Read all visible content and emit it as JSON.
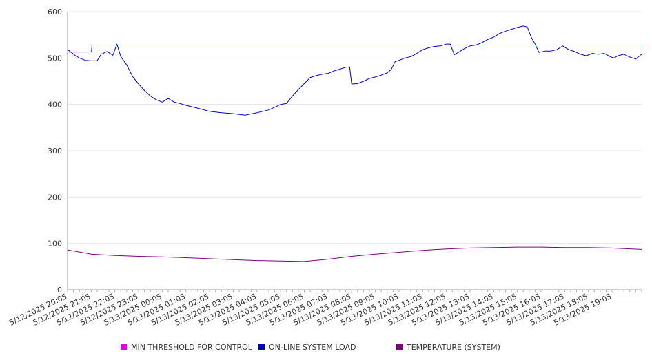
{
  "chart_data": {
    "type": "line",
    "title": "",
    "xlabel": "",
    "ylabel": "",
    "ylim": [
      0,
      600
    ],
    "yticks": [
      0,
      100,
      200,
      300,
      400,
      500,
      600
    ],
    "grid": true,
    "legend_position": "bottom",
    "x_tick_labels": [
      "5/12/2025 20:05",
      "5/12/2025 21:05",
      "5/12/2025 22:05",
      "5/12/2025 23:05",
      "5/13/2025 00:05",
      "5/13/2025 01:05",
      "5/13/2025 02:05",
      "5/13/2025 03:05",
      "5/13/2025 04:05",
      "5/13/2025 05:05",
      "5/13/2025 06:05",
      "5/13/2025 07:05",
      "5/13/2025 08:05",
      "5/13/2025 09:05",
      "5/13/2025 10:05",
      "5/13/2025 11:05",
      "5/13/2025 12:05",
      "5/13/2025 13:05",
      "5/13/2025 14:05",
      "5/13/2025 15:05",
      "5/13/2025 16:05",
      "5/13/2025 17:05",
      "5/13/2025 18:05",
      "5/13/2025 19:05"
    ],
    "x_range": [
      "5/12/2025 20:05",
      "5/13/2025 20:20"
    ],
    "series": [
      {
        "name": "MIN THRESHOLD FOR CONTROL",
        "color": "#e100e1",
        "points": [
          [
            "5/12/2025 20:05",
            513
          ],
          [
            "5/12/2025 21:05",
            513
          ],
          [
            "5/12/2025 21:07",
            528
          ],
          [
            "5/13/2025 20:20",
            528
          ]
        ]
      },
      {
        "name": "ON-LINE SYSTEM LOAD",
        "color": "#0000cc",
        "points": [
          [
            "5/12/2025 20:05",
            518
          ],
          [
            "5/12/2025 20:15",
            512
          ],
          [
            "5/12/2025 20:25",
            505
          ],
          [
            "5/12/2025 20:35",
            500
          ],
          [
            "5/12/2025 20:50",
            495
          ],
          [
            "5/12/2025 21:05",
            494
          ],
          [
            "5/12/2025 21:20",
            494
          ],
          [
            "5/12/2025 21:30",
            508
          ],
          [
            "5/12/2025 21:45",
            514
          ],
          [
            "5/12/2025 22:00",
            506
          ],
          [
            "5/12/2025 22:10",
            530
          ],
          [
            "5/12/2025 22:20",
            503
          ],
          [
            "5/12/2025 22:35",
            485
          ],
          [
            "5/12/2025 22:50",
            460
          ],
          [
            "5/12/2025 23:05",
            444
          ],
          [
            "5/12/2025 23:20",
            430
          ],
          [
            "5/12/2025 23:35",
            418
          ],
          [
            "5/12/2025 23:50",
            410
          ],
          [
            "5/13/2025 00:05",
            405
          ],
          [
            "5/13/2025 00:20",
            413
          ],
          [
            "5/13/2025 00:35",
            405
          ],
          [
            "5/13/2025 00:50",
            402
          ],
          [
            "5/13/2025 01:05",
            398
          ],
          [
            "5/13/2025 01:35",
            392
          ],
          [
            "5/13/2025 02:05",
            385
          ],
          [
            "5/13/2025 02:35",
            382
          ],
          [
            "5/13/2025 03:05",
            380
          ],
          [
            "5/13/2025 03:35",
            377
          ],
          [
            "5/13/2025 04:05",
            382
          ],
          [
            "5/13/2025 04:35",
            388
          ],
          [
            "5/13/2025 05:05",
            400
          ],
          [
            "5/13/2025 05:20",
            402
          ],
          [
            "5/13/2025 05:35",
            418
          ],
          [
            "5/13/2025 05:50",
            432
          ],
          [
            "5/13/2025 06:05",
            445
          ],
          [
            "5/13/2025 06:20",
            458
          ],
          [
            "5/13/2025 06:35",
            462
          ],
          [
            "5/13/2025 06:50",
            465
          ],
          [
            "5/13/2025 07:05",
            467
          ],
          [
            "5/13/2025 07:20",
            472
          ],
          [
            "5/13/2025 07:35",
            476
          ],
          [
            "5/13/2025 07:50",
            480
          ],
          [
            "5/13/2025 08:00",
            481
          ],
          [
            "5/13/2025 08:05",
            444
          ],
          [
            "5/13/2025 08:20",
            445
          ],
          [
            "5/13/2025 08:35",
            450
          ],
          [
            "5/13/2025 08:50",
            456
          ],
          [
            "5/13/2025 09:05",
            459
          ],
          [
            "5/13/2025 09:20",
            463
          ],
          [
            "5/13/2025 09:35",
            468
          ],
          [
            "5/13/2025 09:45",
            475
          ],
          [
            "5/13/2025 09:55",
            492
          ],
          [
            "5/13/2025 10:05",
            495
          ],
          [
            "5/13/2025 10:20",
            500
          ],
          [
            "5/13/2025 10:35",
            503
          ],
          [
            "5/13/2025 10:50",
            510
          ],
          [
            "5/13/2025 11:05",
            518
          ],
          [
            "5/13/2025 11:20",
            522
          ],
          [
            "5/13/2025 11:35",
            525
          ],
          [
            "5/13/2025 11:50",
            526
          ],
          [
            "5/13/2025 12:05",
            530
          ],
          [
            "5/13/2025 12:15",
            530
          ],
          [
            "5/13/2025 12:25",
            507
          ],
          [
            "5/13/2025 12:35",
            512
          ],
          [
            "5/13/2025 12:50",
            520
          ],
          [
            "5/13/2025 13:05",
            526
          ],
          [
            "5/13/2025 13:20",
            528
          ],
          [
            "5/13/2025 13:35",
            533
          ],
          [
            "5/13/2025 13:50",
            540
          ],
          [
            "5/13/2025 14:05",
            545
          ],
          [
            "5/13/2025 14:20",
            553
          ],
          [
            "5/13/2025 14:35",
            558
          ],
          [
            "5/13/2025 14:50",
            562
          ],
          [
            "5/13/2025 15:05",
            566
          ],
          [
            "5/13/2025 15:20",
            569
          ],
          [
            "5/13/2025 15:30",
            567
          ],
          [
            "5/13/2025 15:40",
            545
          ],
          [
            "5/13/2025 15:50",
            530
          ],
          [
            "5/13/2025 16:00",
            512
          ],
          [
            "5/13/2025 16:15",
            515
          ],
          [
            "5/13/2025 16:30",
            515
          ],
          [
            "5/13/2025 16:45",
            518
          ],
          [
            "5/13/2025 17:00",
            526
          ],
          [
            "5/13/2025 17:15",
            518
          ],
          [
            "5/13/2025 17:30",
            514
          ],
          [
            "5/13/2025 17:45",
            508
          ],
          [
            "5/13/2025 18:00",
            505
          ],
          [
            "5/13/2025 18:15",
            510
          ],
          [
            "5/13/2025 18:30",
            508
          ],
          [
            "5/13/2025 18:45",
            510
          ],
          [
            "5/13/2025 19:00",
            503
          ],
          [
            "5/13/2025 19:10",
            500
          ],
          [
            "5/13/2025 19:20",
            505
          ],
          [
            "5/13/2025 19:35",
            508
          ],
          [
            "5/13/2025 19:50",
            502
          ],
          [
            "5/13/2025 20:05",
            498
          ],
          [
            "5/13/2025 20:20",
            508
          ]
        ]
      },
      {
        "name": "TEMPERATURE (SYSTEM)",
        "color": "#800080",
        "points": [
          [
            "5/12/2025 20:05",
            86
          ],
          [
            "5/12/2025 21:05",
            77
          ],
          [
            "5/12/2025 22:05",
            74
          ],
          [
            "5/12/2025 23:05",
            72
          ],
          [
            "5/13/2025 00:05",
            71
          ],
          [
            "5/13/2025 01:05",
            69
          ],
          [
            "5/13/2025 02:05",
            67
          ],
          [
            "5/13/2025 03:05",
            65
          ],
          [
            "5/13/2025 04:05",
            63
          ],
          [
            "5/13/2025 05:05",
            62
          ],
          [
            "5/13/2025 06:05",
            61
          ],
          [
            "5/13/2025 07:05",
            66
          ],
          [
            "5/13/2025 08:05",
            72
          ],
          [
            "5/13/2025 09:05",
            77
          ],
          [
            "5/13/2025 10:05",
            81
          ],
          [
            "5/13/2025 11:05",
            85
          ],
          [
            "5/13/2025 12:05",
            88
          ],
          [
            "5/13/2025 13:05",
            90
          ],
          [
            "5/13/2025 14:05",
            91
          ],
          [
            "5/13/2025 15:05",
            92
          ],
          [
            "5/13/2025 16:05",
            92
          ],
          [
            "5/13/2025 17:05",
            91
          ],
          [
            "5/13/2025 18:05",
            91
          ],
          [
            "5/13/2025 19:05",
            90
          ],
          [
            "5/13/2025 20:20",
            87
          ]
        ]
      }
    ]
  }
}
